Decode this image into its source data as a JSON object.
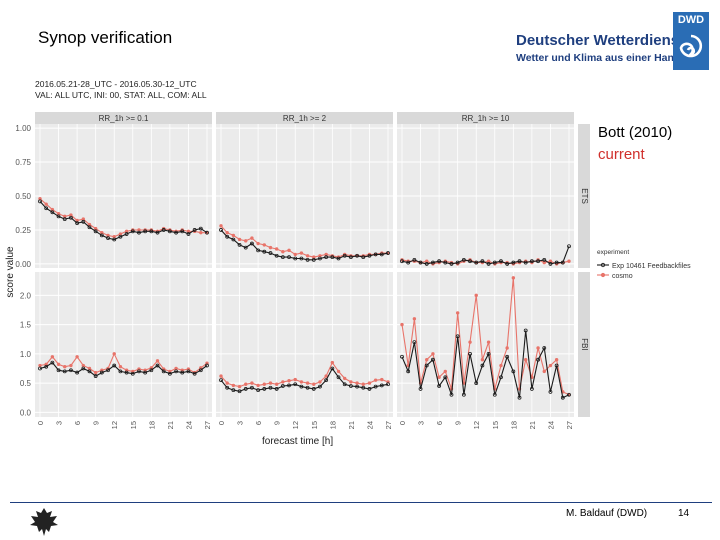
{
  "slide": {
    "title": "Synop verification",
    "logo_name": "Deutscher Wetterdienst",
    "logo_tagline": "Wetter und Klima aus einer Hand",
    "logo_badge": "DWD",
    "note_line1": "Bott (2010)",
    "note_line2": "current",
    "footer_author": "M. Baldauf (DWD)",
    "footer_page": "14"
  },
  "colors": {
    "exp": "#1a1a1a",
    "ref": "#e8746a",
    "panel_bg": "#ebebeb",
    "strip_bg": "#d9d9d9",
    "note_red": "#d0302c",
    "brand": "#1f3f7f"
  },
  "chart_data": {
    "type": "line",
    "subtitle_lines": [
      "2016.05.21-28_UTC - 2016.05.30-12_UTC",
      "VAL: ALL UTC, INI: 00, STAT: ALL, COM: ALL"
    ],
    "xlabel": "forecast time [h]",
    "ylabel": "score value",
    "x": [
      0,
      1,
      2,
      3,
      4,
      5,
      6,
      7,
      8,
      9,
      10,
      11,
      12,
      13,
      14,
      15,
      16,
      17,
      18,
      19,
      20,
      21,
      22,
      23,
      24,
      25,
      26,
      27
    ],
    "x_ticks": [
      0,
      3,
      6,
      9,
      12,
      15,
      18,
      21,
      24,
      27
    ],
    "columns": [
      "RR_1h >= 0.1",
      "RR_1h >= 2",
      "RR_1h >= 10"
    ],
    "rows": [
      {
        "label": "ETS",
        "ylim": [
          -0.03,
          1.03
        ],
        "y_ticks": [
          "0.00",
          "0.25",
          "0.50",
          "0.75",
          "1.00"
        ],
        "y_tick_values": [
          0,
          0.25,
          0.5,
          0.75,
          1.0
        ]
      },
      {
        "label": "FBI",
        "ylim": [
          -0.08,
          2.4
        ],
        "y_ticks": [
          "0.0",
          "0.5",
          "1.0",
          "1.5",
          "2.0"
        ],
        "y_tick_values": [
          0,
          0.5,
          1.0,
          1.5,
          2.0
        ]
      }
    ],
    "legend": {
      "title": "experiment",
      "entries": [
        "Exp 10461 Feedbackfiles",
        "cosmo"
      ],
      "position": "right"
    },
    "panels": [
      {
        "row": 0,
        "col": 0,
        "series": [
          {
            "name": "Exp 10461 Feedbackfiles",
            "values": [
              0.46,
              0.41,
              0.38,
              0.35,
              0.33,
              0.34,
              0.3,
              0.31,
              0.27,
              0.24,
              0.21,
              0.19,
              0.18,
              0.2,
              0.22,
              0.24,
              0.23,
              0.24,
              0.24,
              0.23,
              0.25,
              0.24,
              0.23,
              0.24,
              0.22,
              0.25,
              0.26,
              0.23
            ]
          },
          {
            "name": "cosmo",
            "values": [
              0.48,
              0.44,
              0.4,
              0.37,
              0.35,
              0.36,
              0.32,
              0.33,
              0.29,
              0.26,
              0.23,
              0.21,
              0.2,
              0.22,
              0.24,
              0.25,
              0.25,
              0.25,
              0.25,
              0.24,
              0.26,
              0.25,
              0.24,
              0.25,
              0.24,
              0.24,
              0.23,
              0.23
            ]
          }
        ]
      },
      {
        "row": 0,
        "col": 1,
        "series": [
          {
            "name": "Exp 10461 Feedbackfiles",
            "values": [
              0.25,
              0.2,
              0.18,
              0.14,
              0.12,
              0.15,
              0.1,
              0.09,
              0.08,
              0.06,
              0.05,
              0.05,
              0.04,
              0.04,
              0.03,
              0.03,
              0.04,
              0.05,
              0.05,
              0.04,
              0.06,
              0.05,
              0.06,
              0.05,
              0.06,
              0.07,
              0.07,
              0.08
            ]
          },
          {
            "name": "cosmo",
            "values": [
              0.28,
              0.23,
              0.21,
              0.18,
              0.17,
              0.19,
              0.15,
              0.14,
              0.12,
              0.11,
              0.09,
              0.1,
              0.07,
              0.08,
              0.06,
              0.05,
              0.06,
              0.07,
              0.06,
              0.05,
              0.07,
              0.06,
              0.06,
              0.06,
              0.07,
              0.07,
              0.08,
              0.08
            ]
          }
        ]
      },
      {
        "row": 0,
        "col": 2,
        "series": [
          {
            "name": "Exp 10461 Feedbackfiles",
            "values": [
              0.02,
              0.01,
              0.03,
              0.01,
              0.0,
              0.01,
              0.02,
              0.01,
              0.0,
              0.01,
              0.03,
              0.02,
              0.01,
              0.02,
              0.0,
              0.01,
              0.02,
              0.0,
              0.01,
              0.02,
              0.01,
              0.02,
              0.02,
              0.03,
              0.0,
              0.01,
              0.01,
              0.13
            ]
          },
          {
            "name": "cosmo",
            "values": [
              0.03,
              0.02,
              0.02,
              0.01,
              0.02,
              0.0,
              0.01,
              0.02,
              0.01,
              0.0,
              0.02,
              0.03,
              0.01,
              0.01,
              0.02,
              0.0,
              0.01,
              0.01,
              0.0,
              0.01,
              0.02,
              0.01,
              0.03,
              0.01,
              0.02,
              0.0,
              0.01,
              0.02
            ]
          }
        ]
      },
      {
        "row": 1,
        "col": 0,
        "series": [
          {
            "name": "Exp 10461 Feedbackfiles",
            "values": [
              0.75,
              0.78,
              0.85,
              0.72,
              0.7,
              0.72,
              0.68,
              0.75,
              0.7,
              0.62,
              0.68,
              0.72,
              0.8,
              0.7,
              0.68,
              0.66,
              0.7,
              0.68,
              0.72,
              0.8,
              0.7,
              0.66,
              0.7,
              0.68,
              0.7,
              0.66,
              0.72,
              0.8
            ]
          },
          {
            "name": "cosmo",
            "values": [
              0.8,
              0.82,
              0.95,
              0.82,
              0.78,
              0.8,
              0.95,
              0.8,
              0.75,
              0.68,
              0.72,
              0.75,
              1.0,
              0.78,
              0.72,
              0.7,
              0.74,
              0.72,
              0.76,
              0.88,
              0.74,
              0.7,
              0.75,
              0.72,
              0.74,
              0.68,
              0.76,
              0.84
            ]
          }
        ]
      },
      {
        "row": 1,
        "col": 1,
        "series": [
          {
            "name": "Exp 10461 Feedbackfiles",
            "values": [
              0.55,
              0.42,
              0.38,
              0.36,
              0.4,
              0.42,
              0.38,
              0.4,
              0.42,
              0.4,
              0.45,
              0.46,
              0.48,
              0.44,
              0.42,
              0.4,
              0.44,
              0.55,
              0.75,
              0.6,
              0.48,
              0.45,
              0.44,
              0.42,
              0.4,
              0.44,
              0.46,
              0.48
            ]
          },
          {
            "name": "cosmo",
            "values": [
              0.62,
              0.5,
              0.46,
              0.44,
              0.48,
              0.5,
              0.46,
              0.48,
              0.5,
              0.48,
              0.52,
              0.54,
              0.56,
              0.52,
              0.5,
              0.48,
              0.52,
              0.62,
              0.85,
              0.7,
              0.58,
              0.52,
              0.5,
              0.48,
              0.5,
              0.55,
              0.56,
              0.52
            ]
          }
        ]
      },
      {
        "row": 1,
        "col": 2,
        "series": [
          {
            "name": "Exp 10461 Feedbackfiles",
            "values": [
              0.95,
              0.7,
              1.2,
              0.4,
              0.8,
              0.9,
              0.45,
              0.6,
              0.3,
              1.3,
              0.3,
              1.0,
              0.5,
              0.8,
              1.0,
              0.3,
              0.6,
              0.95,
              0.7,
              0.25,
              1.4,
              0.4,
              0.9,
              1.1,
              0.35,
              0.8,
              0.25,
              0.3
            ]
          },
          {
            "name": "cosmo",
            "values": [
              1.5,
              0.8,
              1.6,
              0.5,
              0.9,
              1.0,
              0.6,
              0.7,
              0.4,
              1.7,
              0.5,
              1.2,
              2.0,
              0.9,
              1.2,
              0.4,
              0.8,
              1.1,
              2.3,
              0.4,
              0.9,
              0.6,
              1.1,
              0.7,
              0.8,
              0.9,
              0.35,
              0.3
            ]
          }
        ]
      }
    ]
  }
}
